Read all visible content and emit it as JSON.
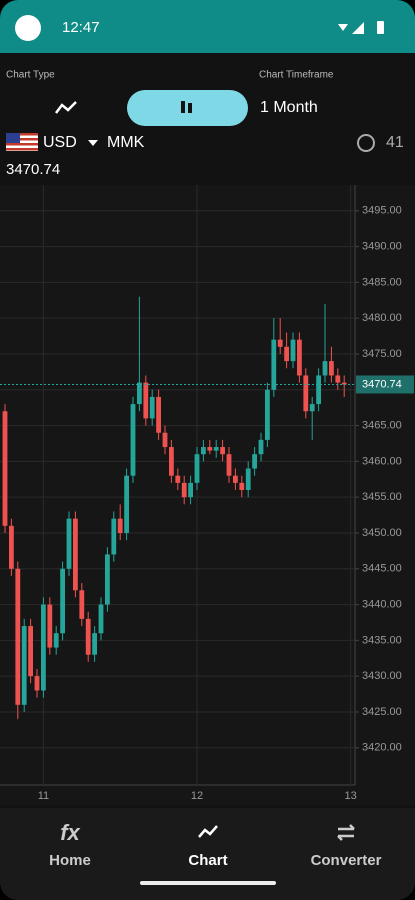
{
  "status_bar": {
    "time": "12:47"
  },
  "controls": {
    "chart_type_label": "Chart Type",
    "timeframe_label": "Chart Timeframe",
    "timeframe": "1 Month"
  },
  "pair": {
    "base": "USD",
    "quote": "MMK",
    "countdown": "41"
  },
  "chart_data": {
    "type": "candlestick",
    "current_price": 3470.74,
    "categories": [
      null,
      null,
      null,
      null,
      null,
      null,
      "11",
      null,
      null,
      null,
      null,
      null,
      null,
      null,
      null,
      null,
      null,
      null,
      null,
      null,
      null,
      null,
      null,
      null,
      null,
      null,
      null,
      null,
      null,
      null,
      "12",
      null,
      null,
      null,
      null,
      null,
      null,
      null,
      null,
      null,
      null,
      null,
      null,
      null,
      null,
      null,
      null,
      null,
      null,
      null,
      null,
      null,
      null,
      null,
      "13"
    ],
    "open": [
      3467,
      3451,
      3445,
      3426,
      3437,
      3430,
      3428,
      3440,
      3434,
      3436,
      3445,
      3452,
      3442,
      3438,
      3433,
      3436,
      3440,
      3447,
      3452,
      3450,
      3458,
      3468,
      3471,
      3466,
      3469,
      3464,
      3462,
      3458,
      3457,
      3455,
      3457,
      3461,
      3462,
      3461.5,
      3462,
      3461,
      3458,
      3457,
      3456,
      3459,
      3461,
      3463,
      3470,
      3477,
      3476,
      3474,
      3477,
      3472,
      3467,
      3468,
      3472,
      3474,
      3472,
      3471,
      null
    ],
    "high": [
      3468,
      3452,
      3446,
      3438,
      3438,
      3431,
      3441,
      3441,
      3437,
      3446,
      3453,
      3453,
      3443,
      3439,
      3437,
      3441,
      3448,
      3453,
      3454,
      3459,
      3469,
      3483,
      3472,
      3470,
      3470,
      3465,
      3463,
      3459,
      3458,
      3458,
      3462,
      3463,
      3463,
      3463,
      3463,
      3462,
      3459,
      3458,
      3460,
      3462,
      3464,
      3471,
      3480,
      3480,
      3478,
      3478,
      3478,
      3473,
      3469,
      3473,
      3482,
      3476,
      3473,
      3472,
      null
    ],
    "low": [
      3450,
      3444,
      3424,
      3425,
      3429,
      3427,
      3427,
      3433,
      3433,
      3435,
      3444,
      3441,
      3437,
      3432,
      3432,
      3435,
      3439,
      3446,
      3449,
      3449,
      3457,
      3467,
      3465,
      3465,
      3463,
      3461,
      3457,
      3456,
      3454,
      3454,
      3456,
      3460,
      3461,
      3460.5,
      3460,
      3457,
      3456,
      3455,
      3455,
      3458,
      3460,
      3462,
      3469,
      3475,
      3473,
      3473,
      3471,
      3466,
      3463,
      3467,
      3471,
      3471,
      3470,
      3469,
      null
    ],
    "close": [
      3451,
      3445,
      3426,
      3437,
      3430,
      3428,
      3440,
      3434,
      3436,
      3445,
      3452,
      3442,
      3438,
      3433,
      3436,
      3440,
      3447,
      3452,
      3450,
      3458,
      3468,
      3471,
      3466,
      3469,
      3464,
      3462,
      3458,
      3457,
      3455,
      3457,
      3461,
      3462,
      3461.5,
      3462,
      3461,
      3458,
      3457,
      3456,
      3459,
      3461,
      3463,
      3470,
      3477,
      3476,
      3474,
      3477,
      3472,
      3467,
      3468,
      3472,
      3474,
      3472,
      3471,
      3470.74,
      null
    ],
    "up_color": "#26a69a",
    "down_color": "#ef5350",
    "ylim": [
      3414.8,
      3498.6
    ],
    "yticks": [
      {
        "value": 3420,
        "label": "3420.00"
      },
      {
        "value": 3425,
        "label": "3425.00"
      },
      {
        "value": 3430,
        "label": "3430.00"
      },
      {
        "value": 3435,
        "label": "3435.00"
      },
      {
        "value": 3440,
        "label": "3440.00"
      },
      {
        "value": 3445,
        "label": "3445.00"
      },
      {
        "value": 3450,
        "label": "3450.00"
      },
      {
        "value": 3455,
        "label": "3455.00"
      },
      {
        "value": 3460,
        "label": "3460.00"
      },
      {
        "value": 3465,
        "label": "3465.00"
      },
      {
        "value": 3470,
        "label": "3470.00"
      },
      {
        "value": 3475,
        "label": "3475.00"
      },
      {
        "value": 3480,
        "label": "3480.00"
      },
      {
        "value": 3485,
        "label": "3485.00"
      },
      {
        "value": 3490,
        "label": "3490.00"
      },
      {
        "value": 3495,
        "label": "3495.00"
      }
    ],
    "grid": true
  },
  "nav": {
    "items": [
      {
        "icon": "fx",
        "label": "Home"
      },
      {
        "label": "Chart"
      },
      {
        "label": "Converter"
      }
    ]
  }
}
